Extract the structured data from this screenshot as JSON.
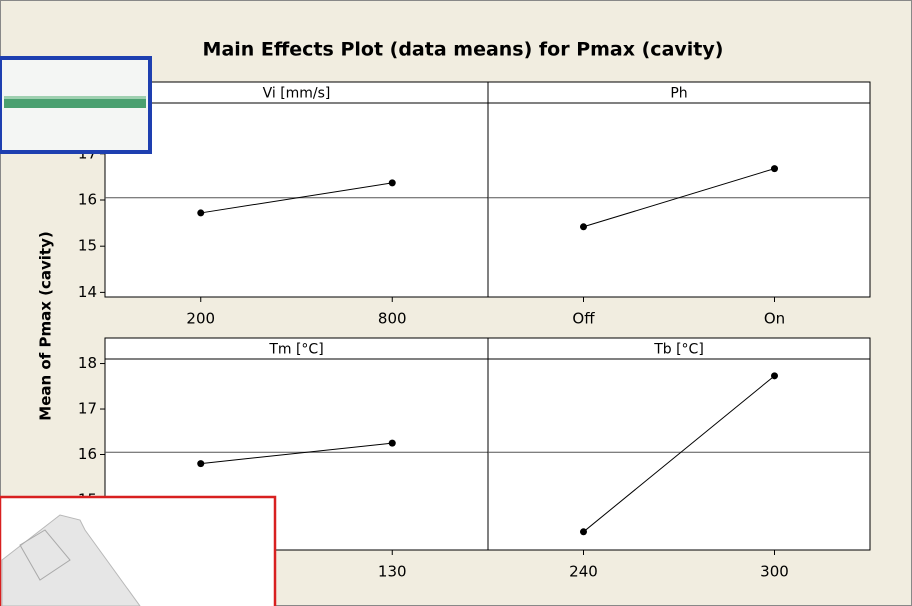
{
  "chart_data": {
    "type": "line",
    "title": "Main Effects Plot (data means) for Pmax (cavity)",
    "y_label": "Mean of Pmax (cavity)",
    "mean": 16.05,
    "ylim": [
      13.9,
      18.1
    ],
    "color": "#000000",
    "panels": [
      {
        "title": "Vi [mm/s]",
        "categories": [
          "200",
          "800"
        ],
        "values": [
          15.72,
          16.37
        ],
        "yticks": [
          14,
          15,
          16,
          17
        ]
      },
      {
        "title": "Ph",
        "categories": [
          "Off",
          "On"
        ],
        "values": [
          15.42,
          16.68
        ]
      },
      {
        "title": "Tm [°C]",
        "categories": [
          null,
          "130"
        ],
        "values": [
          15.8,
          16.25
        ],
        "yticks": [
          15,
          16,
          17,
          18
        ]
      },
      {
        "title": "Tb [°C]",
        "categories": [
          "240",
          "300"
        ],
        "values": [
          14.3,
          17.73
        ]
      }
    ]
  }
}
